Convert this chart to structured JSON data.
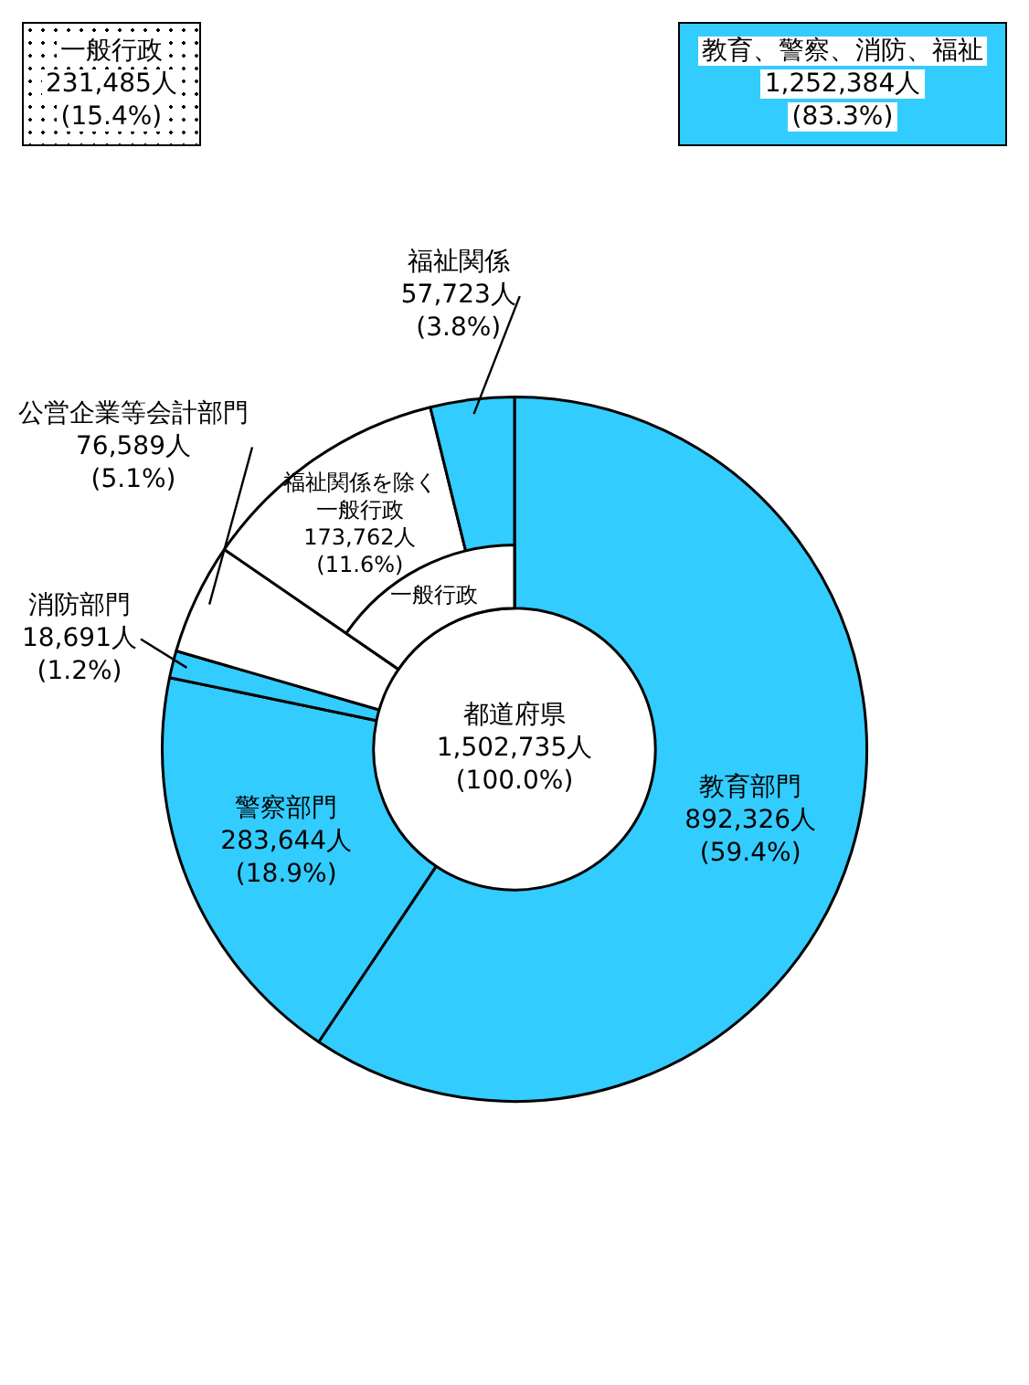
{
  "chart_data": {
    "type": "donut",
    "categories": [
      "教育部門",
      "警察部門",
      "消防部門",
      "公営企業等会計部門",
      "福祉関係を除く一般行政",
      "福祉関係"
    ],
    "values": [
      892326,
      283644,
      18691,
      76589,
      173762,
      57723
    ],
    "colors": [
      "#33ccff",
      "#33ccff",
      "#33ccff",
      "#ffffff",
      "#ffffff",
      "#33ccff"
    ],
    "value_labels": [
      "892,326人\n(59.4%)",
      "283,644人\n(18.9%)",
      "18,691人\n(1.2%)",
      "76,589人\n(5.1%)",
      "173,762人\n(11.6%)",
      "57,723人\n(3.8%)"
    ],
    "annotations": [
      "都道府県\n1,502,735人\n(100.0%)",
      "一般行政\n231,485人\n(15.4%)",
      "教育、警察、消防、福祉\n1,252,384人\n(83.3%)",
      "一般行政"
    ],
    "legend": false
  }
}
